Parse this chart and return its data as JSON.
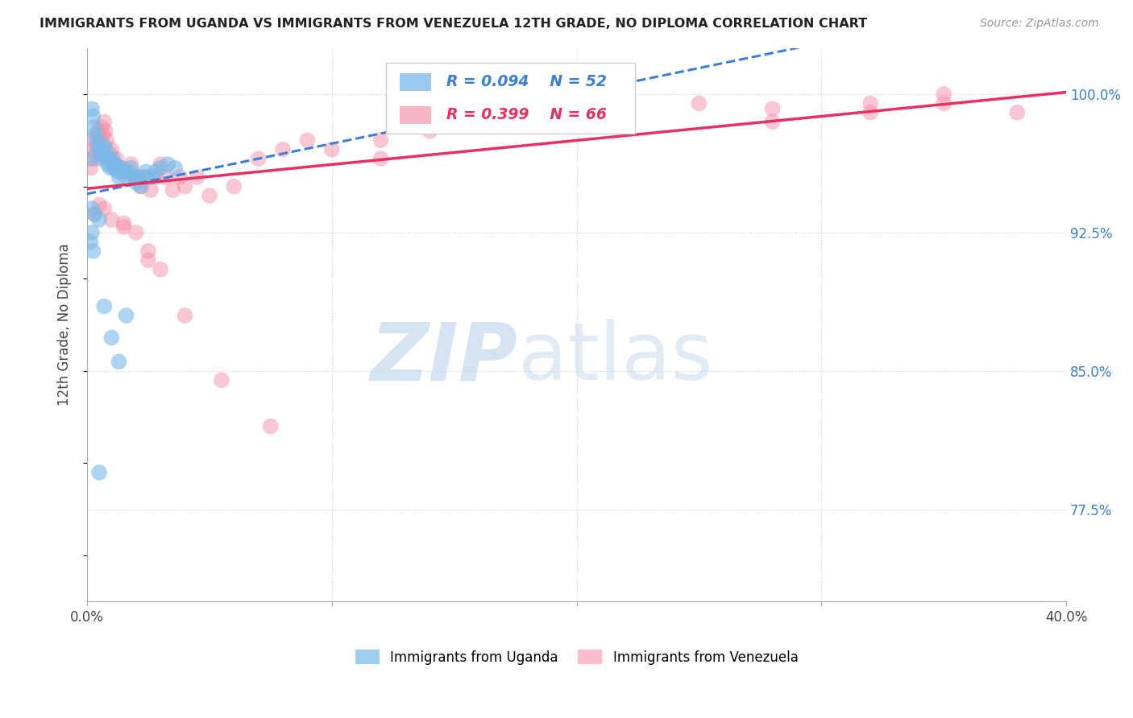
{
  "title": "IMMIGRANTS FROM UGANDA VS IMMIGRANTS FROM VENEZUELA 12TH GRADE, NO DIPLOMA CORRELATION CHART",
  "source": "Source: ZipAtlas.com",
  "ylabel_label": "12th Grade, No Diploma",
  "legend_uganda": "Immigrants from Uganda",
  "legend_venezuela": "Immigrants from Venezuela",
  "ytick_values": [
    77.5,
    85.0,
    92.5,
    100.0
  ],
  "xlim": [
    0.0,
    40.0
  ],
  "ylim": [
    72.5,
    102.5
  ],
  "uganda_color": "#7ab8e8",
  "venezuela_color": "#f490a8",
  "trendline_uganda_color": "#3a7fd4",
  "trendline_venezuela_color": "#e83060",
  "uganda_x": [
    0.15,
    0.2,
    0.25,
    0.3,
    0.35,
    0.4,
    0.45,
    0.5,
    0.55,
    0.6,
    0.65,
    0.7,
    0.75,
    0.8,
    0.85,
    0.9,
    0.95,
    1.0,
    1.05,
    1.1,
    1.15,
    1.2,
    1.25,
    1.3,
    1.35,
    1.4,
    1.5,
    1.6,
    1.7,
    1.8,
    1.9,
    2.0,
    2.1,
    2.2,
    2.3,
    2.4,
    2.6,
    2.8,
    3.0,
    3.3,
    3.6,
    0.2,
    0.3,
    0.5,
    0.7,
    1.0,
    1.3,
    1.6,
    0.15,
    0.2,
    0.25,
    0.5
  ],
  "uganda_y": [
    96.5,
    99.2,
    98.8,
    98.2,
    97.8,
    97.5,
    97.2,
    97.0,
    96.8,
    96.5,
    96.8,
    97.2,
    97.0,
    96.5,
    96.2,
    96.5,
    96.0,
    96.2,
    96.5,
    96.0,
    96.2,
    96.0,
    95.8,
    95.5,
    95.8,
    96.0,
    95.8,
    95.5,
    95.8,
    96.0,
    95.5,
    95.2,
    95.5,
    95.0,
    95.5,
    95.8,
    95.5,
    95.8,
    96.0,
    96.2,
    96.0,
    93.8,
    93.5,
    93.2,
    88.5,
    86.8,
    85.5,
    88.0,
    92.0,
    92.5,
    91.5,
    79.5
  ],
  "venezuela_x": [
    0.15,
    0.2,
    0.25,
    0.3,
    0.35,
    0.4,
    0.45,
    0.5,
    0.55,
    0.6,
    0.65,
    0.7,
    0.75,
    0.8,
    0.9,
    1.0,
    1.1,
    1.2,
    1.4,
    1.6,
    1.8,
    2.0,
    2.2,
    2.4,
    2.6,
    2.8,
    3.0,
    3.2,
    3.5,
    3.8,
    4.0,
    4.5,
    5.0,
    6.0,
    7.0,
    8.0,
    9.0,
    10.0,
    12.0,
    14.0,
    16.0,
    18.0,
    20.0,
    22.0,
    25.0,
    28.0,
    32.0,
    35.0,
    0.3,
    0.5,
    0.7,
    1.0,
    1.5,
    2.0,
    2.5,
    3.0,
    4.0,
    5.5,
    7.5,
    12.0,
    28.0,
    32.0,
    35.0,
    38.0,
    1.5,
    2.5
  ],
  "venezuela_y": [
    96.0,
    97.0,
    97.5,
    96.5,
    96.8,
    97.2,
    98.0,
    97.8,
    97.5,
    98.2,
    97.8,
    98.5,
    98.0,
    97.5,
    96.8,
    97.0,
    96.2,
    96.5,
    96.0,
    95.8,
    96.2,
    95.5,
    95.0,
    95.5,
    94.8,
    95.5,
    96.2,
    95.5,
    94.8,
    95.5,
    95.0,
    95.5,
    94.5,
    95.0,
    96.5,
    97.0,
    97.5,
    97.0,
    97.5,
    98.0,
    98.5,
    99.0,
    98.5,
    99.0,
    99.5,
    99.2,
    99.5,
    100.0,
    93.5,
    94.0,
    93.8,
    93.2,
    92.8,
    92.5,
    91.5,
    90.5,
    88.0,
    84.5,
    82.0,
    96.5,
    98.5,
    99.0,
    99.5,
    99.0,
    93.0,
    91.0
  ]
}
